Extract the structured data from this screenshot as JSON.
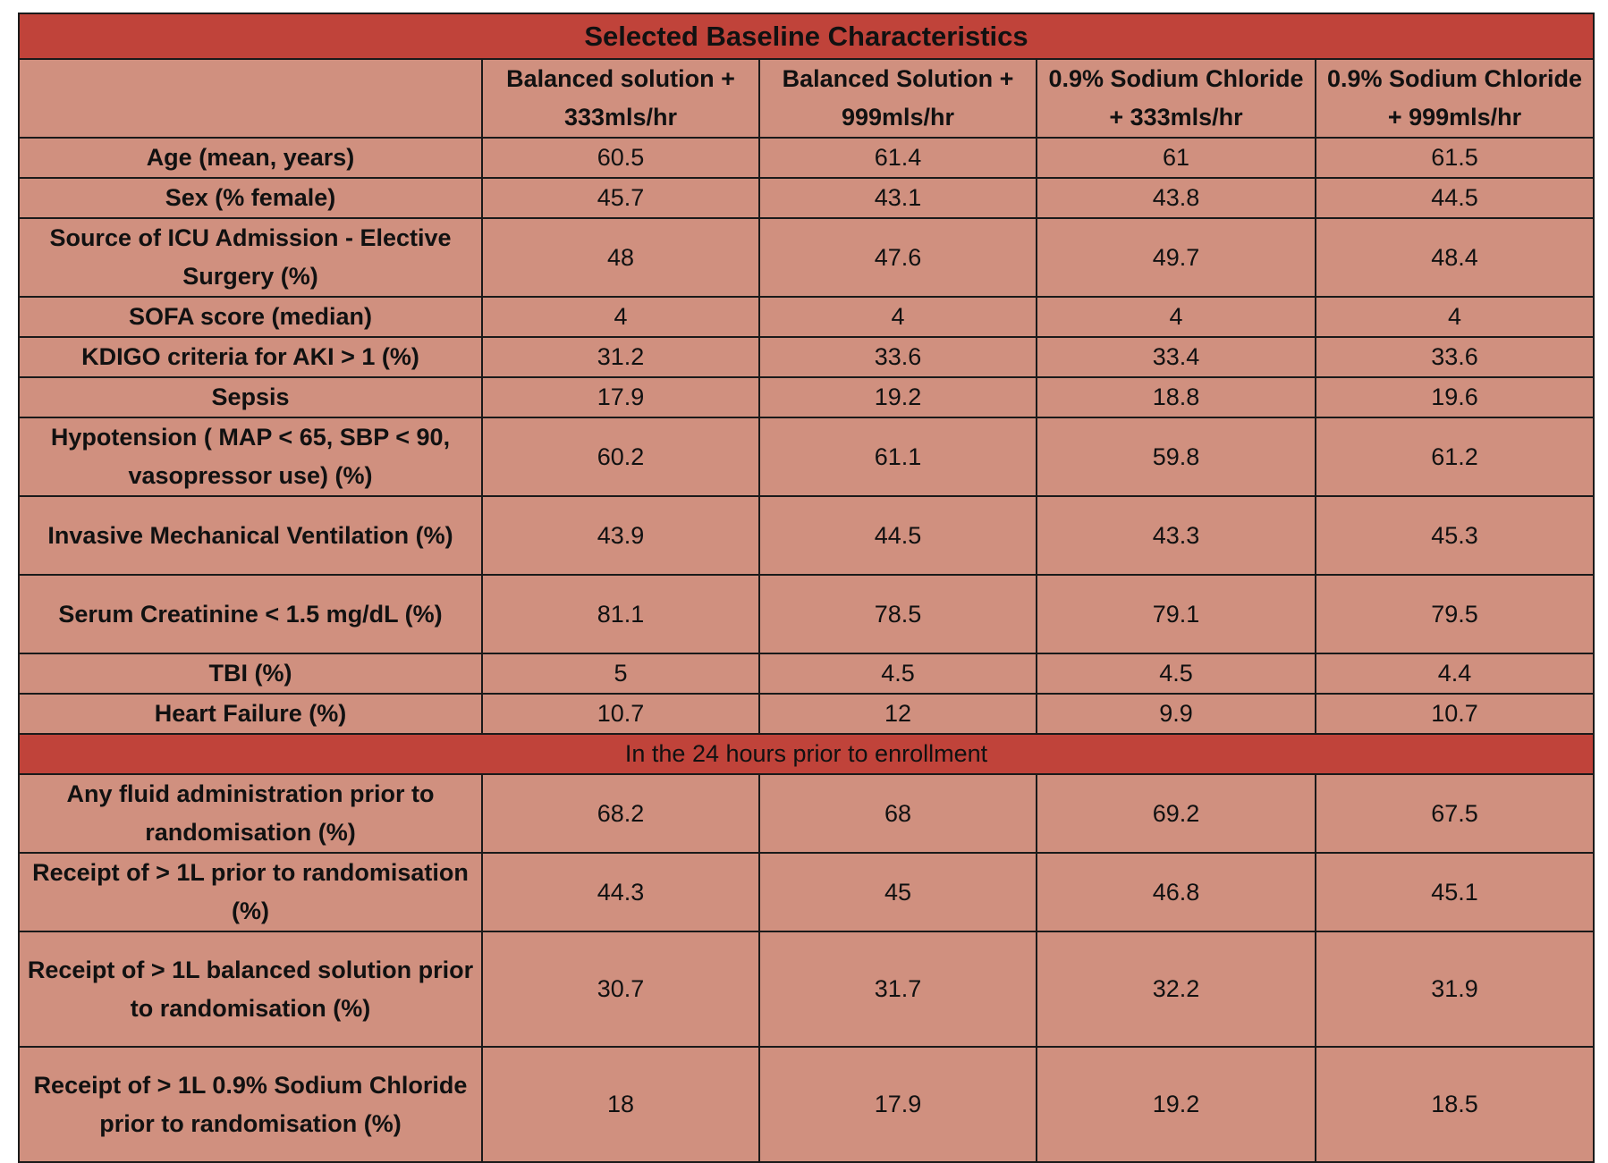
{
  "title": "Selected Baseline Characteristics",
  "columns": [
    "",
    "Balanced solution + 333mls/hr",
    "Balanced Solution + 999mls/hr",
    "0.9% Sodium Chloride + 333mls/hr",
    "0.9% Sodium Chloride + 999mls/hr"
  ],
  "rows": [
    {
      "label": "Age (mean, years)",
      "values": [
        "60.5",
        "61.4",
        "61",
        "61.5"
      ]
    },
    {
      "label": "Sex (% female)",
      "values": [
        "45.7",
        "43.1",
        "43.8",
        "44.5"
      ]
    },
    {
      "label": "Source of ICU Admission - Elective Surgery (%)",
      "values": [
        "48",
        "47.6",
        "49.7",
        "48.4"
      ]
    },
    {
      "label": "SOFA score (median)",
      "values": [
        "4",
        "4",
        "4",
        "4"
      ]
    },
    {
      "label": "KDIGO criteria for AKI > 1 (%)",
      "values": [
        "31.2",
        "33.6",
        "33.4",
        "33.6"
      ]
    },
    {
      "label": "Sepsis",
      "values": [
        "17.9",
        "19.2",
        "18.8",
        "19.6"
      ]
    },
    {
      "label": "Hypotension ( MAP < 65, SBP < 90, vasopressor use) (%)",
      "values": [
        "60.2",
        "61.1",
        "59.8",
        "61.2"
      ]
    },
    {
      "label": "Invasive Mechanical Ventilation (%)",
      "values": [
        "43.9",
        "44.5",
        "43.3",
        "45.3"
      ]
    },
    {
      "label": "Serum Creatinine < 1.5 mg/dL (%)",
      "values": [
        "81.1",
        "78.5",
        "79.1",
        "79.5"
      ]
    },
    {
      "label": "TBI (%)",
      "values": [
        "5",
        "4.5",
        "4.5",
        "4.4"
      ]
    },
    {
      "label": "Heart Failure (%)",
      "values": [
        "10.7",
        "12",
        "9.9",
        "10.7"
      ]
    }
  ],
  "section": "In the 24 hours prior to enrollment",
  "rows2": [
    {
      "label": "Any fluid administration prior to randomisation (%)",
      "values": [
        "68.2",
        "68",
        "69.2",
        "67.5"
      ]
    },
    {
      "label": "Receipt of > 1L prior to randomisation (%)",
      "values": [
        "44.3",
        "45",
        "46.8",
        "45.1"
      ]
    },
    {
      "label": "Receipt of > 1L balanced solution prior to randomisation (%)",
      "values": [
        "30.7",
        "31.7",
        "32.2",
        "31.9"
      ]
    },
    {
      "label": "Receipt of > 1L 0.9% Sodium Chloride prior to randomisation (%)",
      "values": [
        "18",
        "17.9",
        "19.2",
        "18.5"
      ]
    }
  ],
  "colors": {
    "title_bg": "#c0433a",
    "cell_bg": "#d0907f",
    "border": "#1a1a1a"
  }
}
